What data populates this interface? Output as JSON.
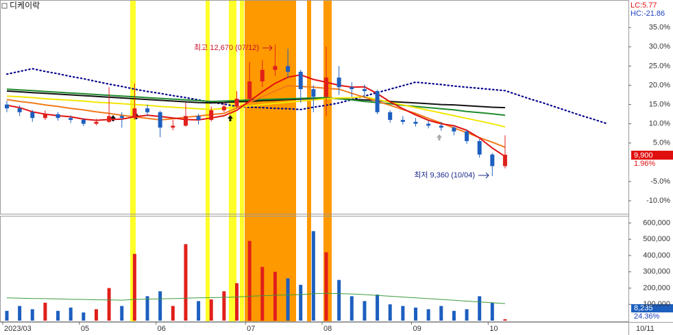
{
  "chart_data": {
    "type": "candlestick",
    "title": "디케이락",
    "lc_label": "LC:5.77",
    "hc_label": "HC:-21.86",
    "high_annotation": "최고 12,670 (07/12)",
    "low_annotation": "최저 9,360 (10/04)",
    "last_price": {
      "value": 9900,
      "label": "9,900"
    },
    "volume_change": "24.36%",
    "current_date": "10/11",
    "up_color": "#e0201b",
    "down_color": "#1d5fbf",
    "categories": [
      "2023/03",
      null,
      null,
      null,
      null,
      null,
      "05",
      null,
      null,
      null,
      null,
      null,
      "06",
      null,
      null,
      null,
      null,
      null,
      null,
      "07",
      null,
      null,
      null,
      null,
      null,
      "08",
      null,
      null,
      null,
      null,
      null,
      null,
      "09",
      null,
      null,
      null,
      null,
      null,
      "10",
      null,
      null,
      null,
      null,
      null,
      null,
      null,
      null,
      null
    ],
    "open": [
      15,
      14,
      13,
      11.5,
      12.5,
      11.5,
      11,
      10,
      10.5,
      12,
      11.5,
      14,
      13,
      9,
      9.5,
      12,
      11,
      13.5,
      14.5,
      16.5,
      21,
      24,
      25,
      23.5,
      19,
      17,
      22,
      19.5,
      19,
      18.5,
      13,
      11,
      10.5,
      10,
      9.5,
      9,
      8,
      5.5,
      2,
      -1,
      null,
      null,
      null,
      null,
      null,
      null,
      null,
      null
    ],
    "high": [
      16,
      14.8,
      13.6,
      13.5,
      13,
      12.2,
      11.5,
      11.3,
      19.5,
      13,
      20.5,
      15,
      13.4,
      11,
      15.5,
      12.6,
      14.5,
      15.6,
      18.5,
      26,
      26.5,
      30.5,
      29.5,
      24,
      20,
      30,
      25,
      20.8,
      20.2,
      18.8,
      13.5,
      12,
      11.5,
      10.8,
      10.5,
      9.5,
      8.4,
      6,
      2.4,
      7,
      null,
      null,
      null,
      null,
      null,
      null,
      null,
      null
    ],
    "low": [
      13,
      12,
      10.5,
      11,
      10.8,
      10.2,
      9.4,
      9.6,
      10.2,
      9,
      11,
      12,
      6.5,
      8.3,
      9.2,
      9.8,
      10.6,
      13,
      14,
      16,
      19.5,
      22.5,
      22,
      15.5,
      13,
      12,
      17.5,
      17,
      16.8,
      12.5,
      10.3,
      9.8,
      9.3,
      8.8,
      8.2,
      7,
      4.8,
      1.2,
      -3.6,
      -1.6,
      null,
      null,
      null,
      null,
      null,
      null,
      null,
      null
    ],
    "close": [
      14,
      13,
      11.5,
      12.5,
      11.5,
      11,
      10,
      10.5,
      12,
      11.5,
      14,
      13,
      9,
      9.5,
      12,
      11,
      13.5,
      14.5,
      16.5,
      21,
      24,
      25,
      23.5,
      19,
      17,
      22,
      19.5,
      19,
      18.5,
      13,
      11,
      10.5,
      10,
      9.5,
      9,
      8,
      5.5,
      2,
      -1,
      1.96,
      null,
      null,
      null,
      null,
      null,
      null,
      null,
      null
    ],
    "close_label": "1.96%",
    "ylim": [
      -13.2,
      41.8
    ],
    "yticks": [
      {
        "value": 35,
        "label": "35.0%"
      },
      {
        "value": 30,
        "label": "30.0%"
      },
      {
        "value": 25,
        "label": "25.0%"
      },
      {
        "value": 20,
        "label": "20.0%"
      },
      {
        "value": 15,
        "label": "15.0%"
      },
      {
        "value": 10,
        "label": "10.0%"
      },
      {
        "value": 5,
        "label": "5.0%"
      },
      {
        "value": -5,
        "label": "-5.0%"
      },
      {
        "value": -10,
        "label": "-10.0%"
      }
    ],
    "series": [
      {
        "color": "#00008b",
        "style": "dotted",
        "values": [
          22.9,
          23.6,
          24.3,
          23.6,
          23.0,
          22.3,
          21.7,
          21.0,
          20.3,
          19.7,
          19.0,
          18.4,
          17.9,
          17.3,
          16.8,
          16.2,
          15.6,
          15.1,
          14.5,
          14.3,
          14.2,
          14.0,
          13.9,
          13.7,
          14.3,
          14.8,
          15.4,
          16.3,
          17.2,
          18.1,
          19.0,
          19.9,
          20.8,
          20.5,
          20.2,
          19.8,
          19.5,
          19.2,
          18.9,
          18.6,
          17.5,
          16.4,
          15.4,
          14.3,
          13.2,
          12.1,
          11.1,
          10.0
        ]
      },
      {
        "color": "#111111",
        "values": [
          18.5,
          18.3,
          18.1,
          17.9,
          17.7,
          17.5,
          17.3,
          17.1,
          16.9,
          16.7,
          16.5,
          16.3,
          16.1,
          15.9,
          15.7,
          15.5,
          15.4,
          15.5,
          15.7,
          15.8,
          16.0,
          16.1,
          16.3,
          16.4,
          16.6,
          16.7,
          16.5,
          16.3,
          16.2,
          16.0,
          15.8,
          15.6,
          15.4,
          15.2,
          15.0,
          14.9,
          14.7,
          14.5,
          14.3,
          14.2,
          null,
          null,
          null,
          null,
          null,
          null,
          null,
          null
        ]
      },
      {
        "color": "#1e8a2e",
        "values": [
          19.0,
          18.8,
          18.6,
          18.4,
          18.2,
          18.0,
          17.8,
          17.6,
          17.4,
          17.2,
          17.0,
          16.8,
          16.6,
          16.4,
          16.2,
          16.0,
          15.8,
          15.9,
          16.0,
          16.2,
          16.3,
          16.4,
          16.5,
          16.6,
          16.7,
          16.8,
          16.5,
          16.2,
          15.8,
          15.5,
          15.2,
          14.8,
          14.5,
          14.2,
          13.9,
          13.6,
          13.2,
          12.9,
          12.6,
          12.2,
          null,
          null,
          null,
          null,
          null,
          null,
          null,
          null
        ]
      },
      {
        "color": "#f2e600",
        "values": [
          17.2,
          17.0,
          16.8,
          16.5,
          16.3,
          16.1,
          15.9,
          15.6,
          15.4,
          15.2,
          15.0,
          14.8,
          14.5,
          14.3,
          14.1,
          13.9,
          13.7,
          14.0,
          14.3,
          14.6,
          15.0,
          15.3,
          15.6,
          15.9,
          16.2,
          16.5,
          16.7,
          16.8,
          17.0,
          16.3,
          15.6,
          14.9,
          14.2,
          13.5,
          12.8,
          12.1,
          11.4,
          10.7,
          10.0,
          9.2,
          null,
          null,
          null,
          null,
          null,
          null,
          null,
          null
        ]
      },
      {
        "color": "#f07a1a",
        "values": [
          16.3,
          15.8,
          15.4,
          14.9,
          14.5,
          14.0,
          13.6,
          13.1,
          12.7,
          12.2,
          11.8,
          11.4,
          11.0,
          11.3,
          11.7,
          12.0,
          12.4,
          12.7,
          14.1,
          15.6,
          17.0,
          18.5,
          19.9,
          19.7,
          19.5,
          19.2,
          19.0,
          17.9,
          16.9,
          15.8,
          14.8,
          13.7,
          12.7,
          11.4,
          10.2,
          8.9,
          7.7,
          6.4,
          5.2,
          3.9,
          null,
          null,
          null,
          null,
          null,
          null,
          null,
          null
        ]
      },
      {
        "color": "#e01010",
        "values": [
          14.8,
          14.2,
          13.1,
          12.5,
          12.1,
          11.8,
          11.2,
          10.9,
          11.1,
          11.2,
          11.8,
          12.2,
          11.9,
          11.5,
          11.1,
          11.0,
          11.5,
          12.1,
          13.5,
          15.9,
          18.3,
          20.5,
          22.1,
          22.7,
          21.5,
          20.8,
          20.0,
          19.5,
          19.6,
          17.8,
          15.7,
          13.9,
          12.3,
          10.9,
          10.0,
          9.5,
          8.3,
          6.3,
          3.7,
          1.5,
          null,
          null,
          null,
          null,
          null,
          null,
          null,
          null
        ]
      }
    ],
    "volume": {
      "values": [
        60000,
        90000,
        70000,
        110000,
        60000,
        80000,
        50000,
        70000,
        200000,
        90000,
        410000,
        150000,
        180000,
        90000,
        470000,
        120000,
        130000,
        180000,
        230000,
        490000,
        330000,
        300000,
        260000,
        220000,
        550000,
        420000,
        250000,
        150000,
        120000,
        160000,
        100000,
        90000,
        80000,
        70000,
        90000,
        60000,
        70000,
        150000,
        110000,
        8235,
        null,
        null,
        null,
        null,
        null,
        null,
        null,
        null
      ],
      "last_label": "8,235",
      "ma": {
        "color": "#3c9a3c",
        "values": [
          140000,
          138000,
          136000,
          135000,
          133000,
          131000,
          130000,
          128000,
          127000,
          126000,
          130000,
          132000,
          134000,
          135000,
          138000,
          140000,
          141000,
          143000,
          145000,
          150000,
          153000,
          156000,
          158000,
          160000,
          165000,
          168000,
          166000,
          164000,
          160000,
          155000,
          150000,
          145000,
          140000,
          135000,
          130000,
          125000,
          120000,
          115000,
          110000,
          105000,
          null,
          null,
          null,
          null,
          null,
          null,
          null,
          null
        ]
      },
      "ylim": [
        0,
        640000
      ],
      "yticks": [
        {
          "value": 600000,
          "label": "600,000"
        },
        {
          "value": 500000,
          "label": "500,000"
        },
        {
          "value": 400000,
          "label": "400,000"
        },
        {
          "value": 300000,
          "label": "300,000"
        },
        {
          "value": 200000,
          "label": "200,000"
        },
        {
          "value": 100000,
          "label": "100,000"
        }
      ]
    }
  }
}
